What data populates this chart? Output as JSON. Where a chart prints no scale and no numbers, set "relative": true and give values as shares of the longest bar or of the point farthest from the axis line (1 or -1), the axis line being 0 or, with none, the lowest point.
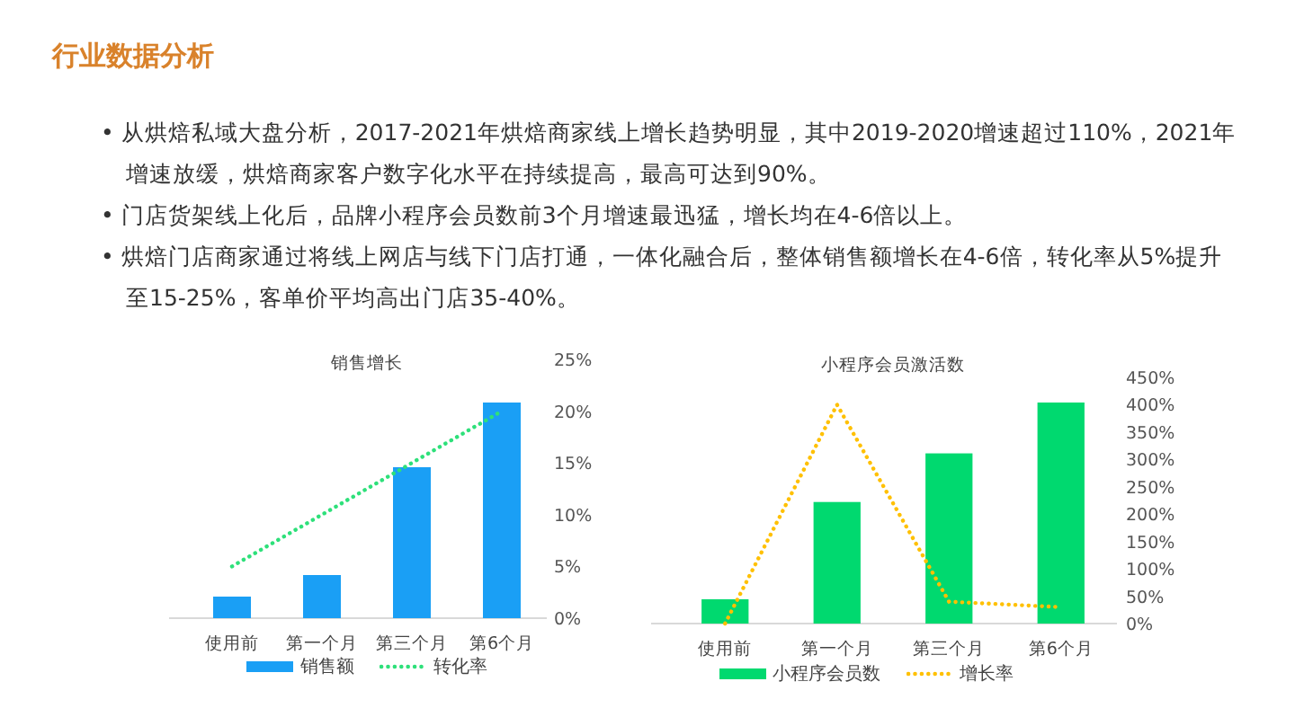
{
  "chart_data": [
    {
      "type": "other",
      "title": "行业数据分析",
      "annotations": [
        "• 从烘焙私域大盘分析，2017-2021年烘焙商家线上增长趋势明显，其中2019-2020增速超过110%，2021年增速放缓，烘焙商家客户数字化水平在持续提高，最高可达到90%。",
        "• 门店货架线上化后，品牌小程序会员数前3个月增速最迅猛，增长均在4-6倍以上。",
        "• 烘焙门店商家通过将线上网店与线下门店打通，一体化融合后，整体销售额增长在4-6倍，转化率从5%提升至15-25%，客单价平均高出门店35-40%。"
      ]
    },
    {
      "type": "bar",
      "title": "销售增长",
      "categories": [
        null,
        null,
        null,
        null
      ],
      "relative": true,
      "tick_labels": false,
      "legend": "bottom",
      "series": [
        {
          "name": "销售额",
          "color": "#1a9ff5",
          "values": [
            0.1,
            0.2,
            0.7,
            1
          ]
        }
      ]
    },
    {
      "type": "line",
      "categories": [
        "使用前",
        "第一个月",
        "第三个月",
        "第6个月"
      ],
      "legend": "bottom",
      "line_style": "dotted",
      "series": [
        {
          "name": "转化率",
          "color": "#2ee07a",
          "values": [
            5,
            10,
            15,
            20
          ]
        }
      ],
      "ylim": [
        0,
        25
      ],
      "yticks": [
        {
          "value": 0,
          "label": "0%"
        },
        {
          "value": 5,
          "label": "5%"
        },
        {
          "value": 10,
          "label": "10%"
        },
        {
          "value": 15,
          "label": "15%"
        },
        {
          "value": 20,
          "label": "20%"
        },
        {
          "value": 25,
          "label": "25%"
        }
      ]
    },
    {
      "type": "bar",
      "title": "小程序会员激活数",
      "categories": [
        null,
        null,
        null,
        null
      ],
      "relative": true,
      "tick_labels": false,
      "legend": "bottom",
      "series": [
        {
          "name": "小程序会员数",
          "color": "#00d96f",
          "values": [
            0.11,
            0.55,
            0.77,
            1
          ]
        }
      ]
    },
    {
      "type": "line",
      "categories": [
        "使用前",
        "第一个月",
        "第三个月",
        "第6个月"
      ],
      "legend": "bottom",
      "line_style": "dotted",
      "series": [
        {
          "name": "增长率",
          "color": "#ffc000",
          "values": [
            0,
            400,
            40,
            30
          ]
        }
      ],
      "ylim": [
        0,
        450
      ],
      "yticks": [
        {
          "value": 0,
          "label": "0%"
        },
        {
          "value": 50,
          "label": "50%"
        },
        {
          "value": 100,
          "label": "100%"
        },
        {
          "value": 150,
          "label": "150%"
        },
        {
          "value": 200,
          "label": "200%"
        },
        {
          "value": 250,
          "label": "250%"
        },
        {
          "value": 300,
          "label": "300%"
        },
        {
          "value": 350,
          "label": "350%"
        },
        {
          "value": 400,
          "label": "400%"
        },
        {
          "value": 450,
          "label": "450%"
        }
      ]
    }
  ]
}
